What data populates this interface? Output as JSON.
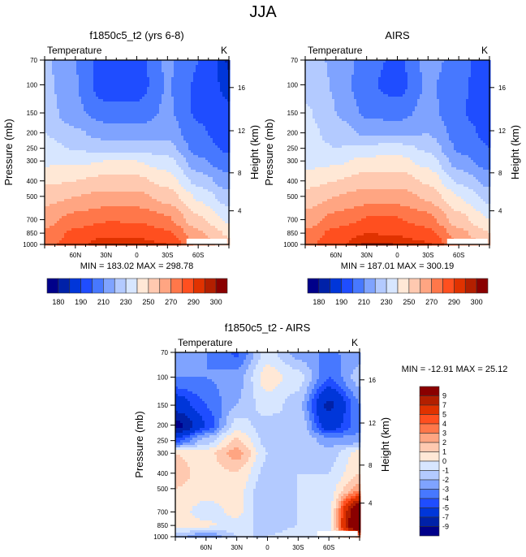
{
  "main_title": "JJA",
  "chart_data": [
    {
      "type": "heatmap",
      "subtype": "filled-contour",
      "title": "f1850c5_t2 (yrs 6-8)",
      "left_string": "Temperature",
      "right_string": "K",
      "ylabel": "Pressure (mb)",
      "ylabel_right": "Height (km)",
      "x_ticks": [
        "60N",
        "30N",
        "0",
        "30S",
        "60S"
      ],
      "x_range": [
        "90N",
        "90S"
      ],
      "y_ticks": [
        "70",
        "100",
        "150",
        "200",
        "250",
        "300",
        "400",
        "500",
        "700",
        "850",
        "1000"
      ],
      "y_range_mb": [
        1000,
        70
      ],
      "y_right_ticks": [
        "4",
        "8",
        "12",
        "16"
      ],
      "stats": "MIN = 183.02  MAX = 298.78",
      "levels": [
        180,
        185,
        190,
        200,
        210,
        220,
        230,
        240,
        250,
        260,
        270,
        280,
        290,
        295,
        300
      ],
      "colorbar_labels": [
        "180",
        "190",
        "210",
        "230",
        "250",
        "270",
        "290",
        "300"
      ],
      "colorbar_orientation": "horizontal",
      "lat": [
        90,
        60,
        30,
        0,
        -30,
        -60,
        -90
      ],
      "pres": [
        70,
        100,
        150,
        200,
        250,
        300,
        400,
        500,
        700,
        850,
        1000
      ],
      "field": [
        [
          222,
          210,
          193,
          196,
          212,
          200,
          184
        ],
        [
          223,
          211,
          192,
          194,
          211,
          198,
          187
        ],
        [
          226,
          212,
          205,
          204,
          212,
          198,
          192
        ],
        [
          230,
          222,
          215,
          214,
          216,
          202,
          194
        ],
        [
          234,
          229,
          226,
          226,
          224,
          205,
          198
        ],
        [
          238,
          238,
          240,
          240,
          234,
          212,
          203
        ],
        [
          248,
          250,
          253,
          253,
          246,
          226,
          214
        ],
        [
          256,
          260,
          263,
          263,
          256,
          238,
          224
        ],
        [
          266,
          274,
          279,
          279,
          272,
          252,
          238
        ],
        [
          272,
          283,
          288,
          287,
          282,
          262,
          248
        ],
        [
          276,
          287,
          295,
          294,
          290,
          268,
          255
        ]
      ]
    },
    {
      "type": "heatmap",
      "subtype": "filled-contour",
      "title": "AIRS",
      "left_string": "Temperature",
      "right_string": "K",
      "ylabel": "Pressure (mb)",
      "ylabel_right": "Height (km)",
      "x_ticks": [
        "60N",
        "30N",
        "0",
        "30S",
        "60S"
      ],
      "x_range": [
        "90N",
        "90S"
      ],
      "y_ticks": [
        "70",
        "100",
        "150",
        "200",
        "250",
        "300",
        "400",
        "500",
        "700",
        "850",
        "1000"
      ],
      "y_range_mb": [
        1000,
        70
      ],
      "y_right_ticks": [
        "4",
        "8",
        "12",
        "16"
      ],
      "stats": "MIN = 187.01  MAX = 300.19",
      "levels": [
        180,
        185,
        190,
        200,
        210,
        220,
        230,
        240,
        250,
        260,
        270,
        280,
        290,
        295,
        300
      ],
      "colorbar_labels": [
        "180",
        "190",
        "210",
        "230",
        "250",
        "270",
        "290",
        "300"
      ],
      "colorbar_orientation": "horizontal",
      "lat": [
        90,
        60,
        30,
        0,
        -30,
        -60,
        -90
      ],
      "pres": [
        70,
        100,
        150,
        200,
        250,
        300,
        400,
        500,
        700,
        850,
        1000
      ],
      "field": [
        [
          225,
          218,
          205,
          197,
          214,
          206,
          190
        ],
        [
          226,
          219,
          202,
          195,
          212,
          203,
          192
        ],
        [
          232,
          220,
          208,
          206,
          214,
          201,
          194
        ],
        [
          234,
          226,
          218,
          217,
          220,
          205,
          197
        ],
        [
          234,
          230,
          233,
          234,
          228,
          208,
          200
        ],
        [
          236,
          238,
          243,
          244,
          236,
          214,
          205
        ],
        [
          246,
          250,
          255,
          256,
          248,
          228,
          216
        ],
        [
          254,
          260,
          265,
          265,
          258,
          240,
          226
        ],
        [
          264,
          274,
          281,
          281,
          274,
          254,
          240
        ],
        [
          272,
          284,
          290,
          289,
          284,
          264,
          250
        ],
        [
          276,
          288,
          296,
          295,
          291,
          270,
          256
        ]
      ]
    },
    {
      "type": "heatmap",
      "subtype": "filled-contour",
      "title": "f1850c5_t2 - AIRS",
      "left_string": "Temperature",
      "right_string": "K",
      "ylabel": "Pressure (mb)",
      "ylabel_right": "Height (km)",
      "x_ticks": [
        "60N",
        "30N",
        "0",
        "30S",
        "60S"
      ],
      "x_range": [
        "90N",
        "90S"
      ],
      "y_ticks": [
        "70",
        "100",
        "150",
        "200",
        "250",
        "300",
        "400",
        "500",
        "700",
        "850",
        "1000"
      ],
      "y_range_mb": [
        1000,
        70
      ],
      "y_right_ticks": [
        "4",
        "8",
        "12",
        "16"
      ],
      "stats": "MIN = -12.91  MAX =  25.12",
      "levels": [
        -9,
        -7,
        -5,
        -4,
        -3,
        -2,
        -1,
        0,
        1,
        2,
        3,
        4,
        5,
        7,
        9
      ],
      "colorbar_labels": [
        "9",
        "7",
        "5",
        "4",
        "3",
        "2",
        "1",
        "0",
        "-1",
        "-2",
        "-3",
        "-4",
        "-5",
        "-7",
        "-9"
      ],
      "colorbar_orientation": "vertical",
      "lat": [
        90,
        60,
        30,
        0,
        -30,
        -60,
        -90
      ],
      "pres": [
        70,
        100,
        150,
        200,
        250,
        300,
        400,
        500,
        700,
        850,
        1000
      ],
      "field": [
        [
          -2.0,
          -3.0,
          -4.2,
          -0.5,
          -2.5,
          -3.2,
          -2.5
        ],
        [
          -3.0,
          -3.0,
          -2.5,
          0.6,
          -0.5,
          -4.0,
          -1.5
        ],
        [
          -6.0,
          -4.0,
          -2.0,
          -0.5,
          -1.5,
          -7.5,
          -3.0
        ],
        [
          -10.0,
          -5.0,
          -0.5,
          -1.5,
          -1.0,
          -6.0,
          -3.5
        ],
        [
          -4.5,
          -1.5,
          1.2,
          -1.5,
          -1.0,
          -2.5,
          -2.5
        ],
        [
          1.0,
          0.5,
          2.5,
          -1.0,
          -1.5,
          -1.5,
          0.5
        ],
        [
          1.5,
          0.5,
          1.0,
          -1.5,
          -1.0,
          -1.0,
          1.0
        ],
        [
          1.0,
          0.5,
          0.5,
          -2.0,
          -1.0,
          -0.5,
          2.5
        ],
        [
          0.5,
          -0.5,
          0.3,
          -2.0,
          -1.0,
          -0.5,
          12.0
        ],
        [
          0.5,
          0.2,
          -0.5,
          -1.5,
          -1.0,
          -0.5,
          14.0
        ],
        [
          -1.5,
          -3.0,
          -1.0,
          -1.0,
          -0.5,
          -0.2,
          2.0
        ]
      ]
    }
  ],
  "colors": {
    "palette": [
      "#00008a",
      "#0021a8",
      "#0036d9",
      "#1f4dff",
      "#4778ff",
      "#7fa3ff",
      "#b3caff",
      "#d7e6ff",
      "#ffe8d6",
      "#ffc9b0",
      "#ffa582",
      "#ff774a",
      "#ff4f1f",
      "#e03200",
      "#b31f00",
      "#8a0000"
    ],
    "missing": "#ffffff"
  }
}
